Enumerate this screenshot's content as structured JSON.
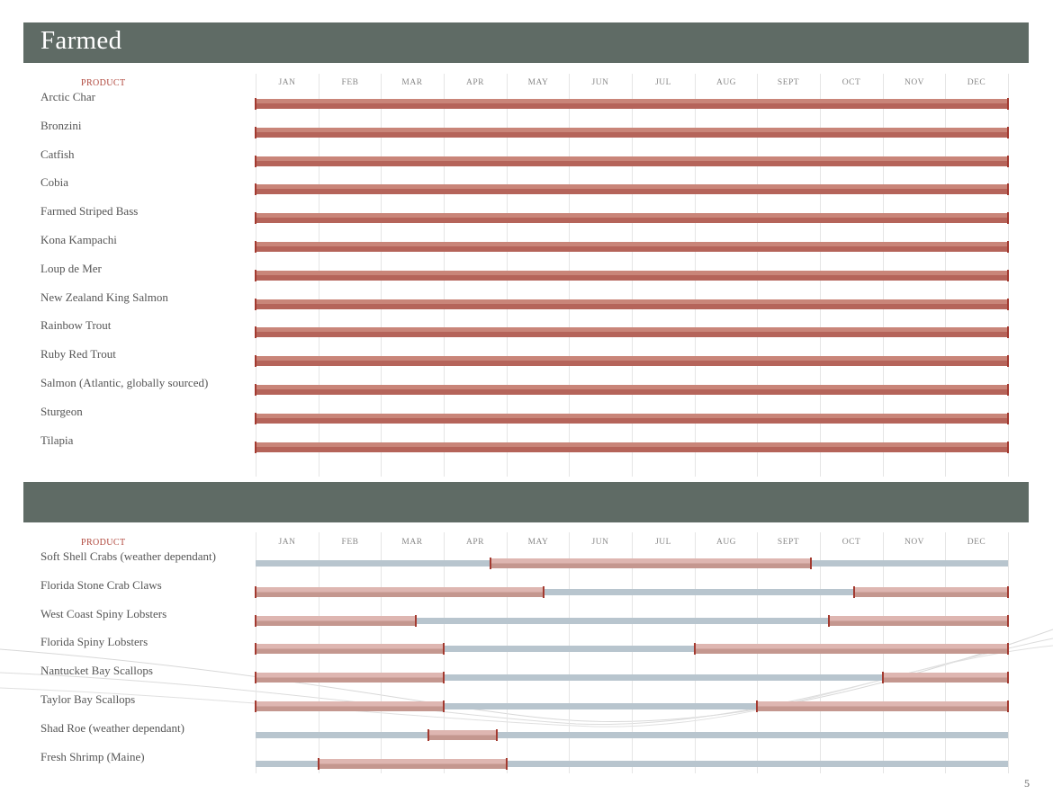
{
  "farmed": {
    "title": "Farmed",
    "product_header": "PRODUCT",
    "months": [
      "JAN",
      "FEB",
      "MAR",
      "APR",
      "MAY",
      "JUN",
      "JUL",
      "AUG",
      "SEPT",
      "OCT",
      "NOV",
      "DEC"
    ],
    "rows": [
      {
        "name": "Arctic Char",
        "availability": [
          [
            0,
            12
          ]
        ]
      },
      {
        "name": "Bronzini",
        "availability": [
          [
            0,
            12
          ]
        ]
      },
      {
        "name": "Catfish",
        "availability": [
          [
            0,
            12
          ]
        ]
      },
      {
        "name": "Cobia",
        "availability": [
          [
            0,
            12
          ]
        ]
      },
      {
        "name": "Farmed Striped Bass",
        "availability": [
          [
            0,
            12
          ]
        ]
      },
      {
        "name": "Kona Kampachi",
        "availability": [
          [
            0,
            12
          ]
        ]
      },
      {
        "name": "Loup de Mer",
        "availability": [
          [
            0,
            12
          ]
        ]
      },
      {
        "name": "New Zealand King Salmon",
        "availability": [
          [
            0,
            12
          ]
        ]
      },
      {
        "name": "Rainbow Trout",
        "availability": [
          [
            0,
            12
          ]
        ]
      },
      {
        "name": "Ruby Red Trout",
        "availability": [
          [
            0,
            12
          ]
        ]
      },
      {
        "name": "Salmon (Atlantic, globally sourced)",
        "availability": [
          [
            0,
            12
          ]
        ]
      },
      {
        "name": "Sturgeon",
        "availability": [
          [
            0,
            12
          ]
        ]
      },
      {
        "name": "Tilapia",
        "availability": [
          [
            0,
            12
          ]
        ]
      }
    ]
  },
  "seasonal": {
    "title": "",
    "product_header": "PRODUCT",
    "months": [
      "JAN",
      "FEB",
      "MAR",
      "APR",
      "MAY",
      "JUN",
      "JUL",
      "AUG",
      "SEPT",
      "OCT",
      "NOV",
      "DEC"
    ],
    "rows": [
      {
        "name": "Soft Shell Crabs (weather dependant)",
        "availability": [
          [
            3.75,
            8.85
          ]
        ]
      },
      {
        "name": "Florida Stone Crab Claws",
        "availability": [
          [
            0,
            4.6
          ],
          [
            9.55,
            12
          ]
        ]
      },
      {
        "name": "West Coast Spiny Lobsters",
        "availability": [
          [
            0,
            2.55
          ],
          [
            9.15,
            12
          ]
        ]
      },
      {
        "name": "Florida Spiny Lobsters",
        "availability": [
          [
            0,
            3
          ],
          [
            7,
            12
          ]
        ]
      },
      {
        "name": "Nantucket Bay Scallops",
        "availability": [
          [
            0,
            3
          ],
          [
            10,
            12
          ]
        ]
      },
      {
        "name": "Taylor Bay Scallops",
        "availability": [
          [
            0,
            3
          ],
          [
            8,
            12
          ]
        ]
      },
      {
        "name": "Shad Roe (weather dependant)",
        "availability": [
          [
            2.75,
            3.85
          ]
        ]
      },
      {
        "name": "Fresh Shrimp (Maine)",
        "availability": [
          [
            1,
            4
          ]
        ]
      }
    ]
  },
  "page_number": "5",
  "colors": {
    "band": "#5f6b65",
    "header_red": "#b0473c",
    "bar_full": "#c17367",
    "bar_seasonal": "#d8aaa4",
    "track": "#b8c5ce",
    "tick": "#a33a30"
  }
}
